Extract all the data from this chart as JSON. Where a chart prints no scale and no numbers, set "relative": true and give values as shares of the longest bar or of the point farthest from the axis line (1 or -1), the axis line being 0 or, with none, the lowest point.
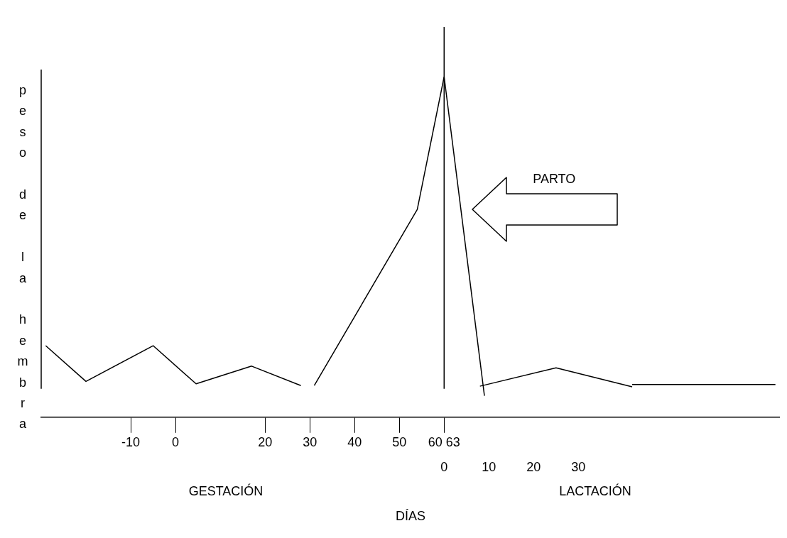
{
  "chart_data": {
    "type": "line",
    "relative": true,
    "xlabel": "DÍAS",
    "ylabel": "peso de la hembra",
    "xlim": [
      -30,
      135
    ],
    "xticks": [
      -10,
      0,
      20,
      30,
      40,
      50,
      {
        "value": 60,
        "label": "60 63"
      }
    ],
    "x2lim": [
      -90,
      75
    ],
    "x2ticks": [
      0,
      10,
      20,
      30
    ],
    "series": [
      {
        "color": "#000000",
        "x": [
          -29,
          -20,
          -5,
          4.6,
          17,
          28
        ],
        "values": [
          0.21,
          0.105,
          0.21,
          0.098,
          0.15,
          0.093
        ]
      },
      {
        "color": "#000000",
        "x": [
          31,
          54,
          60,
          69
        ],
        "values": [
          0.093,
          0.61,
          1,
          0.063
        ]
      },
      {
        "color": "#000000",
        "x": [
          68,
          85,
          102
        ],
        "values": [
          0.091,
          0.145,
          0.089
        ]
      },
      {
        "color": "#000000",
        "x": [
          102,
          134
        ],
        "values": [
          0.096,
          0.096
        ]
      }
    ],
    "ref_lines": [
      {
        "axis": "x",
        "value": 60,
        "label": "PARTO",
        "color": "#000000"
      }
    ],
    "annotations": [
      "GESTACIÓN",
      "LACTACIÓN"
    ],
    "grid": false,
    "legend": false,
    "marker": "none",
    "line_style": "solid"
  }
}
